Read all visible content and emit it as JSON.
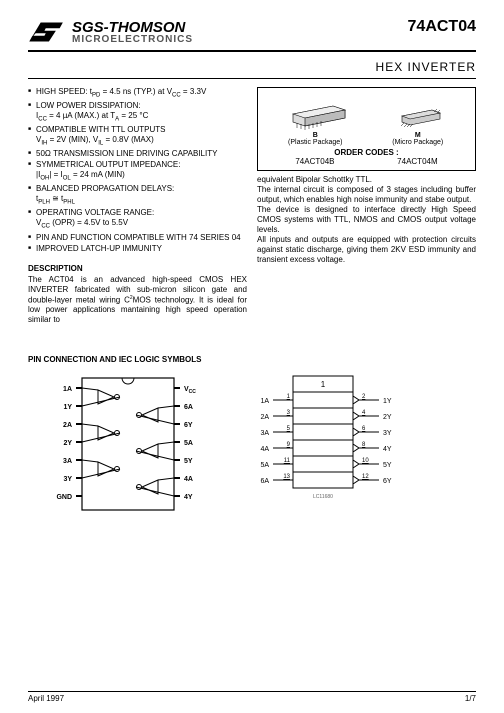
{
  "logo": {
    "top": "SGS-THOMSON",
    "bottom": "MICROELECTRONICS"
  },
  "part_number": "74ACT04",
  "title": "HEX INVERTER",
  "features": [
    "HIGH SPEED: t<sub>PD</sub> = 4.5 ns (TYP.) at V<sub>CC</sub> = 3.3V",
    "LOW POWER DISSIPATION:<br>I<sub>CC</sub> = 4 µA (MAX.) at T<sub>A</sub> = 25 °C",
    "COMPATIBLE WITH TTL OUTPUTS<br>V<sub>IH</sub> = 2V (MIN), V<sub>IL</sub> = 0.8V (MAX)",
    "50Ω TRANSMISSION LINE DRIVING CAPABILITY",
    "SYMMETRICAL OUTPUT IMPEDANCE:<br>|I<sub>OH</sub>| = I<sub>OL</sub> = 24 mA (MIN)",
    "BALANCED PROPAGATION DELAYS:<br>t<sub>PLH</sub> ≅ t<sub>PHL</sub>",
    "OPERATING VOLTAGE RANGE:<br>V<sub>CC</sub> (OPR) = 4.5V to 5.5V",
    "PIN AND FUNCTION COMPATIBLE WITH 74 SERIES 04",
    "IMPROVED LATCH-UP IMMUNITY"
  ],
  "desc_heading": "DESCRIPTION",
  "desc_left": "The ACT04 is an advanced high-speed CMOS HEX INVERTER fabricated with sub-micron silicon gate and double-layer metal wiring C<sup>2</sup>MOS technology. It is ideal for low power applications mantaining high speed operation similar to",
  "pkg": {
    "b_letter": "B",
    "b_sub": "(Plastic Package)",
    "m_letter": "M",
    "m_sub": "(Micro Package)",
    "order_heading": "ORDER CODES :",
    "code_b": "74ACT04B",
    "code_m": "74ACT04M"
  },
  "desc_right_1": "equivalent Bipolar Schottky TTL.",
  "desc_right_2": "The internal circuit is composed of 3 stages including buffer output, which enables high noise immunity and stabe output.",
  "desc_right_3": "The device is designed to interface directly High Speed CMOS systems with TTL, NMOS and CMOS output voltage levels.",
  "desc_right_4": "All inputs and outputs are equipped with protection circuits against static discharge, giving them 2KV ESD immunity and transient excess voltage.",
  "pin_heading": "PIN CONNECTION AND IEC LOGIC SYMBOLS",
  "pin_diagram": {
    "left_labels": [
      "1A",
      "1Y",
      "2A",
      "2Y",
      "3A",
      "3Y",
      "GND"
    ],
    "right_labels": [
      "V",
      "6A",
      "6Y",
      "5A",
      "5Y",
      "4A",
      "4Y"
    ],
    "vcc_sub": "CC"
  },
  "iec_diagram": {
    "header": "1",
    "rows": [
      {
        "in": "1A",
        "in_pin": "1",
        "out_pin": "2",
        "out": "1Y"
      },
      {
        "in": "2A",
        "in_pin": "3",
        "out_pin": "4",
        "out": "2Y"
      },
      {
        "in": "3A",
        "in_pin": "5",
        "out_pin": "6",
        "out": "3Y"
      },
      {
        "in": "4A",
        "in_pin": "9",
        "out_pin": "8",
        "out": "4Y"
      },
      {
        "in": "5A",
        "in_pin": "11",
        "out_pin": "10",
        "out": "5Y"
      },
      {
        "in": "6A",
        "in_pin": "13",
        "out_pin": "12",
        "out": "6Y"
      }
    ],
    "ref": "LC11680"
  },
  "footer": {
    "date": "April 1997",
    "page": "1/7"
  }
}
